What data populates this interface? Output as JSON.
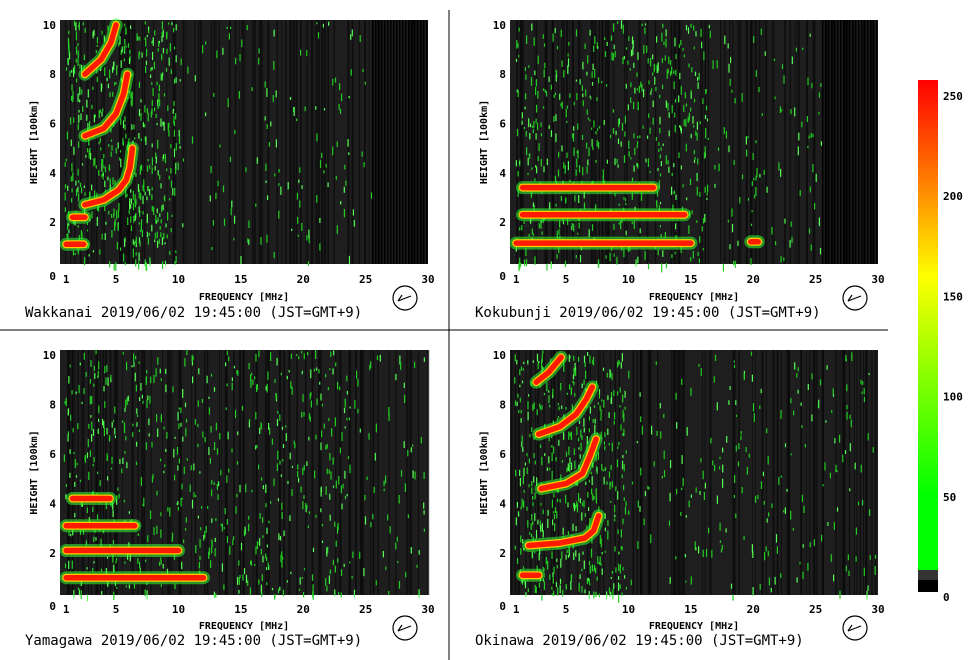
{
  "chart_data": {
    "type": "heatmap",
    "panels": [
      {
        "station": "Wakkanai",
        "title": "Wakkanai 2019/06/02 19:45:00 (JST=GMT+9)",
        "xlabel": "FREQUENCY [MHz]",
        "ylabel": "HEIGHT [100km]",
        "xlim": [
          0,
          30
        ],
        "ylim": [
          0,
          10
        ],
        "xticks": [
          "1",
          "5",
          "10",
          "15",
          "20",
          "25",
          "30"
        ],
        "yticks": [
          "0",
          "2",
          "4",
          "6",
          "8",
          "10"
        ],
        "traces": [
          {
            "name": "E",
            "points": [
              [
                1.0,
                1.1
              ],
              [
                2.4,
                1.1
              ]
            ]
          },
          {
            "name": "F1",
            "points": [
              [
                1.5,
                2.2
              ],
              [
                2.5,
                2.2
              ]
            ]
          },
          {
            "name": "F2",
            "points": [
              [
                2.5,
                2.7
              ],
              [
                4.0,
                2.9
              ],
              [
                5.2,
                3.3
              ],
              [
                5.8,
                3.7
              ],
              [
                6.1,
                4.2
              ],
              [
                6.3,
                5.0
              ]
            ]
          },
          {
            "name": "F2-2hop",
            "points": [
              [
                2.5,
                5.5
              ],
              [
                4.0,
                5.8
              ],
              [
                5.0,
                6.4
              ],
              [
                5.6,
                7.2
              ],
              [
                5.9,
                8.0
              ]
            ]
          },
          {
            "name": "F2-3hop",
            "points": [
              [
                2.5,
                8.0
              ],
              [
                3.8,
                8.6
              ],
              [
                4.6,
                9.3
              ],
              [
                5.0,
                10.0
              ]
            ]
          }
        ],
        "blank_above_mhz": 25.5
      },
      {
        "station": "Kokubunji",
        "title": "Kokubunji 2019/06/02 19:45:00 (JST=GMT+9)",
        "xlabel": "FREQUENCY [MHz]",
        "ylabel": "HEIGHT [100km]",
        "xlim": [
          0,
          30
        ],
        "ylim": [
          0,
          10
        ],
        "xticks": [
          "1",
          "5",
          "10",
          "15",
          "20",
          "25",
          "30"
        ],
        "yticks": [
          "0",
          "2",
          "4",
          "6",
          "8",
          "10"
        ],
        "traces": [
          {
            "name": "E",
            "points": [
              [
                1.0,
                1.15
              ],
              [
                15.0,
                1.15
              ]
            ]
          },
          {
            "name": "F1",
            "points": [
              [
                1.5,
                2.3
              ],
              [
                14.5,
                2.3
              ]
            ]
          },
          {
            "name": "F2",
            "points": [
              [
                1.5,
                3.4
              ],
              [
                12.0,
                3.4
              ]
            ]
          },
          {
            "name": "spot",
            "points": [
              [
                19.8,
                1.2
              ],
              [
                20.4,
                1.2
              ]
            ]
          }
        ],
        "blank_above_mhz": 25.5
      },
      {
        "station": "Yamagawa",
        "title": "Yamagawa 2019/06/02 19:45:00 (JST=GMT+9)",
        "xlabel": "FREQUENCY [MHz]",
        "ylabel": "HEIGHT [100km]",
        "xlim": [
          0,
          30
        ],
        "ylim": [
          0,
          10
        ],
        "xticks": [
          "1",
          "5",
          "10",
          "15",
          "20",
          "25",
          "30"
        ],
        "yticks": [
          "0",
          "2",
          "4",
          "6",
          "8",
          "10"
        ],
        "traces": [
          {
            "name": "E",
            "points": [
              [
                1.0,
                1.0
              ],
              [
                12.0,
                1.0
              ]
            ]
          },
          {
            "name": "F1",
            "points": [
              [
                1.0,
                2.1
              ],
              [
                10.0,
                2.1
              ]
            ]
          },
          {
            "name": "F2",
            "points": [
              [
                1.0,
                3.1
              ],
              [
                6.5,
                3.1
              ]
            ]
          },
          {
            "name": "F2-2hop",
            "points": [
              [
                1.5,
                4.2
              ],
              [
                4.5,
                4.2
              ]
            ]
          }
        ],
        "blank_above_mhz": 30
      },
      {
        "station": "Okinawa",
        "title": "Okinawa 2019/06/02 19:45:00 (JST=GMT+9)",
        "xlabel": "FREQUENCY [MHz]",
        "ylabel": "HEIGHT [100km]",
        "xlim": [
          0,
          30
        ],
        "ylim": [
          0,
          10
        ],
        "xticks": [
          "1",
          "5",
          "10",
          "15",
          "20",
          "25",
          "30"
        ],
        "yticks": [
          "0",
          "2",
          "4",
          "6",
          "8",
          "10"
        ],
        "traces": [
          {
            "name": "E",
            "points": [
              [
                1.5,
                1.1
              ],
              [
                2.8,
                1.1
              ]
            ]
          },
          {
            "name": "F2",
            "points": [
              [
                2.0,
                2.3
              ],
              [
                4.5,
                2.4
              ],
              [
                6.5,
                2.6
              ],
              [
                7.2,
                2.9
              ],
              [
                7.6,
                3.5
              ]
            ]
          },
          {
            "name": "F2-2hop",
            "points": [
              [
                3.0,
                4.6
              ],
              [
                5.0,
                4.8
              ],
              [
                6.3,
                5.2
              ],
              [
                6.9,
                5.9
              ],
              [
                7.4,
                6.6
              ]
            ]
          },
          {
            "name": "F2-3hop",
            "points": [
              [
                2.8,
                6.8
              ],
              [
                4.5,
                7.1
              ],
              [
                5.8,
                7.6
              ],
              [
                6.6,
                8.2
              ],
              [
                7.1,
                8.7
              ]
            ]
          },
          {
            "name": "F2-4hop",
            "points": [
              [
                2.6,
                8.9
              ],
              [
                3.6,
                9.3
              ],
              [
                4.6,
                9.9
              ]
            ]
          }
        ],
        "blank_above_mhz": 30
      }
    ],
    "colorbar": {
      "ticks": [
        "250",
        "200",
        "150",
        "100",
        "50",
        "0"
      ],
      "range": [
        0,
        255
      ],
      "colors": [
        "#ff0000",
        "#ff8800",
        "#ffff00",
        "#00ff00",
        "#333333",
        "#000000"
      ]
    }
  }
}
